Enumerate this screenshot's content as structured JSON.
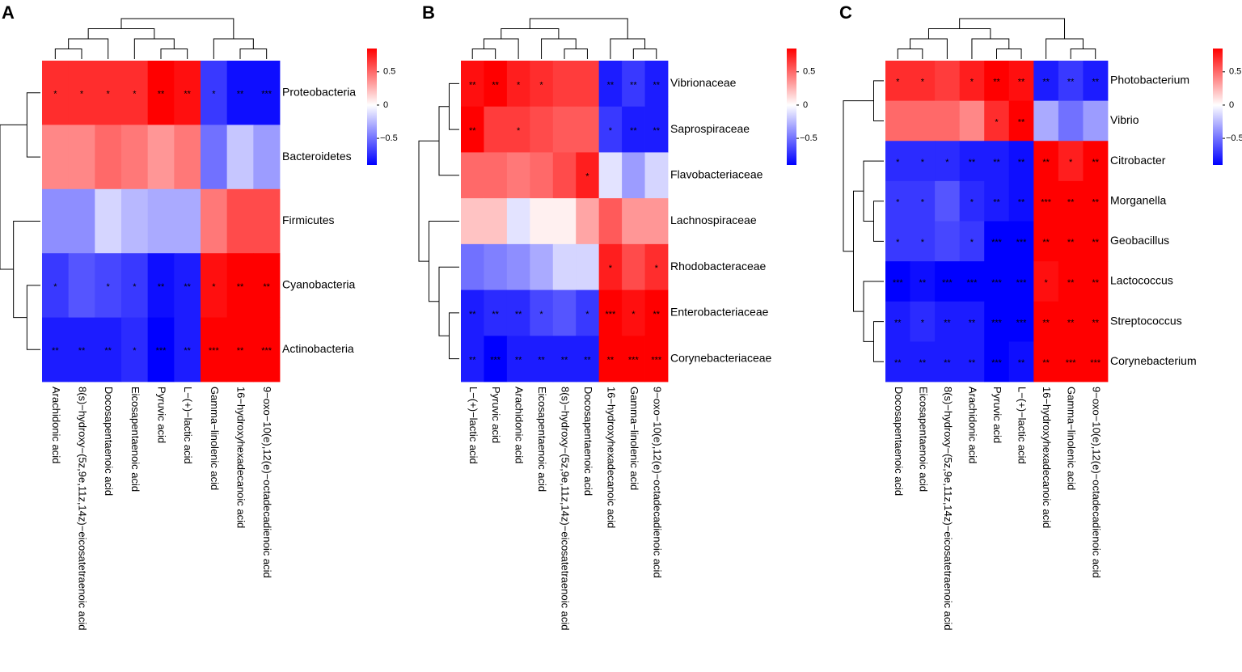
{
  "chart_data": [
    {
      "type": "heatmap",
      "panel": "A",
      "rows": [
        "Proteobacteria",
        "Bacteroidetes",
        "Firmicutes",
        "Cyanobacteria",
        "Actinobacteria"
      ],
      "columns": [
        "Arachidonic acid",
        "8(s)−hydroxy−(5z,9e,11z,14z)−eicosatetraenoic acid",
        "Docosapentaenoic acid",
        "Eicosapentaenoic acid",
        "Pyruvic acid",
        "L−(+)−lactic acid",
        "Gamma−linolenic acid",
        "16−hydroxyhexadecanoic acid",
        "9−oxo−10(e),12(e)−octadecadienoic acid"
      ],
      "values": [
        [
          0.7,
          0.7,
          0.7,
          0.7,
          0.85,
          0.8,
          -0.7,
          -0.85,
          -0.85
        ],
        [
          0.4,
          0.4,
          0.5,
          0.45,
          0.35,
          0.45,
          -0.5,
          -0.2,
          -0.35
        ],
        [
          -0.4,
          -0.4,
          -0.15,
          -0.25,
          -0.3,
          -0.3,
          0.45,
          0.6,
          0.6
        ],
        [
          -0.7,
          -0.6,
          -0.65,
          -0.7,
          -0.85,
          -0.8,
          0.8,
          0.85,
          0.85
        ],
        [
          -0.8,
          -0.8,
          -0.8,
          -0.75,
          -0.95,
          -0.8,
          0.95,
          0.9,
          0.9
        ]
      ],
      "stars": [
        [
          "*",
          "*",
          "*",
          "*",
          "**",
          "**",
          "*",
          "**",
          "***"
        ],
        [
          null,
          null,
          null,
          null,
          null,
          null,
          null,
          null,
          null
        ],
        [
          null,
          null,
          null,
          null,
          null,
          null,
          null,
          null,
          null
        ],
        [
          "*",
          null,
          "*",
          "*",
          "**",
          "**",
          "*",
          "**",
          "**"
        ],
        [
          "**",
          "**",
          "**",
          "*",
          "***",
          "**",
          "***",
          "**",
          "***"
        ]
      ],
      "zlim": [
        -0.9,
        0.85
      ],
      "zticks": [
        0.5,
        0,
        {
          "value": -0.5,
          "label": "−0.5"
        }
      ],
      "colors": [
        "#0000ff",
        "#ffffff",
        "#ff0000"
      ]
    },
    {
      "type": "heatmap",
      "panel": "B",
      "rows": [
        "Vibrionaceae",
        "Saprospiraceae",
        "Flavobacteriaceae",
        "Lachnospiraceae",
        "Rhodobacteraceae",
        "Enterobacteriaceae",
        "Corynebacteriaceae"
      ],
      "columns": [
        "L−(+)−lactic acid",
        "Pyruvic acid",
        "Arachidonic acid",
        "Eicosapentaenoic acid",
        "8(s)−hydroxy−(5z,9e,11z,14z)−eicosatetraenoic acid",
        "Docosapentaenoic acid",
        "16−hydroxyhexadecanoic acid",
        "Gamma−linolenic acid",
        "9−oxo−10(e),12(e)−octadecadienoic acid"
      ],
      "values": [
        [
          0.8,
          0.9,
          0.75,
          0.7,
          0.65,
          0.65,
          -0.8,
          -0.7,
          -0.8
        ],
        [
          0.85,
          0.65,
          0.65,
          0.6,
          0.55,
          0.55,
          -0.7,
          -0.8,
          -0.8
        ],
        [
          0.5,
          0.5,
          0.45,
          0.5,
          0.6,
          0.75,
          -0.1,
          -0.35,
          -0.15
        ],
        [
          0.2,
          0.2,
          -0.1,
          0.05,
          0.05,
          0.3,
          0.55,
          0.35,
          0.35
        ],
        [
          -0.5,
          -0.45,
          -0.4,
          -0.3,
          -0.15,
          -0.15,
          0.75,
          0.6,
          0.7
        ],
        [
          -0.8,
          -0.75,
          -0.75,
          -0.65,
          -0.6,
          -0.7,
          0.95,
          0.8,
          0.85
        ],
        [
          -0.8,
          -0.95,
          -0.8,
          -0.8,
          -0.8,
          -0.8,
          0.85,
          0.9,
          0.9
        ]
      ],
      "stars": [
        [
          "**",
          "**",
          "*",
          "*",
          null,
          null,
          "**",
          "**",
          "**"
        ],
        [
          "**",
          null,
          "*",
          null,
          null,
          null,
          "*",
          "**",
          "**"
        ],
        [
          null,
          null,
          null,
          null,
          null,
          "*",
          null,
          null,
          null
        ],
        [
          null,
          null,
          null,
          null,
          null,
          null,
          null,
          null,
          null
        ],
        [
          null,
          null,
          null,
          null,
          null,
          null,
          "*",
          null,
          "*"
        ],
        [
          "**",
          "**",
          "**",
          "*",
          null,
          "*",
          "***",
          "*",
          "**"
        ],
        [
          "**",
          "***",
          "**",
          "**",
          "**",
          "**",
          "**",
          "***",
          "***"
        ]
      ],
      "zlim": [
        -0.9,
        0.85
      ],
      "zticks": [
        0.5,
        0,
        {
          "value": -0.5,
          "label": "−0.5"
        }
      ],
      "colors": [
        "#0000ff",
        "#ffffff",
        "#ff0000"
      ]
    },
    {
      "type": "heatmap",
      "panel": "C",
      "rows": [
        "Photobacterium",
        "Vibrio",
        "Citrobacter",
        "Morganella",
        "Geobacillus",
        "Lactococcus",
        "Streptococcus",
        "Corynebacterium"
      ],
      "columns": [
        "Docosapentaenoic acid",
        "Eicosapentaenoic acid",
        "8(s)−hydroxy−(5z,9e,11z,14z)−eicosatetraenoic acid",
        "Arachidonic acid",
        "Pyruvic acid",
        "L−(+)−lactic acid",
        "16−hydroxyhexadecanoic acid",
        "Gamma−linolenic acid",
        "9−oxo−10(e),12(e)−octadecadienoic acid"
      ],
      "values": [
        [
          0.7,
          0.7,
          0.65,
          0.75,
          0.85,
          0.8,
          -0.8,
          -0.7,
          -0.8
        ],
        [
          0.5,
          0.5,
          0.5,
          0.4,
          0.7,
          0.85,
          -0.3,
          -0.5,
          -0.35
        ],
        [
          -0.75,
          -0.75,
          -0.75,
          -0.8,
          -0.8,
          -0.85,
          0.85,
          0.75,
          0.85
        ],
        [
          -0.7,
          -0.7,
          -0.6,
          -0.75,
          -0.8,
          -0.85,
          0.9,
          0.85,
          0.85
        ],
        [
          -0.7,
          -0.7,
          -0.65,
          -0.7,
          -0.95,
          -0.9,
          0.85,
          0.85,
          0.85
        ],
        [
          -0.9,
          -0.85,
          -0.95,
          -0.9,
          -0.9,
          -0.9,
          0.8,
          0.85,
          0.85
        ],
        [
          -0.8,
          -0.75,
          -0.8,
          -0.8,
          -0.95,
          -0.9,
          0.85,
          0.85,
          0.85
        ],
        [
          -0.8,
          -0.8,
          -0.8,
          -0.8,
          -0.95,
          -0.85,
          0.85,
          0.9,
          0.9
        ]
      ],
      "stars": [
        [
          "*",
          "*",
          null,
          "*",
          "**",
          "**",
          "**",
          "**",
          "**"
        ],
        [
          null,
          null,
          null,
          null,
          "*",
          "**",
          null,
          null,
          null
        ],
        [
          "*",
          "*",
          "*",
          "**",
          "**",
          "**",
          "**",
          "*",
          "**"
        ],
        [
          "*",
          "*",
          null,
          "*",
          "**",
          "**",
          "***",
          "**",
          "**"
        ],
        [
          "*",
          "*",
          null,
          "*",
          "***",
          "***",
          "**",
          "**",
          "**"
        ],
        [
          "***",
          "**",
          "***",
          "***",
          "***",
          "***",
          "*",
          "**",
          "**"
        ],
        [
          "**",
          "*",
          "**",
          "**",
          "***",
          "***",
          "**",
          "**",
          "**"
        ],
        [
          "**",
          "**",
          "**",
          "**",
          "***",
          "**",
          "**",
          "***",
          "***"
        ]
      ],
      "zlim": [
        -0.9,
        0.85
      ],
      "zticks": [
        0.5,
        0,
        {
          "value": -0.5,
          "label": "−0.5"
        }
      ],
      "colors": [
        "#0000ff",
        "#ffffff",
        "#ff0000"
      ]
    }
  ]
}
